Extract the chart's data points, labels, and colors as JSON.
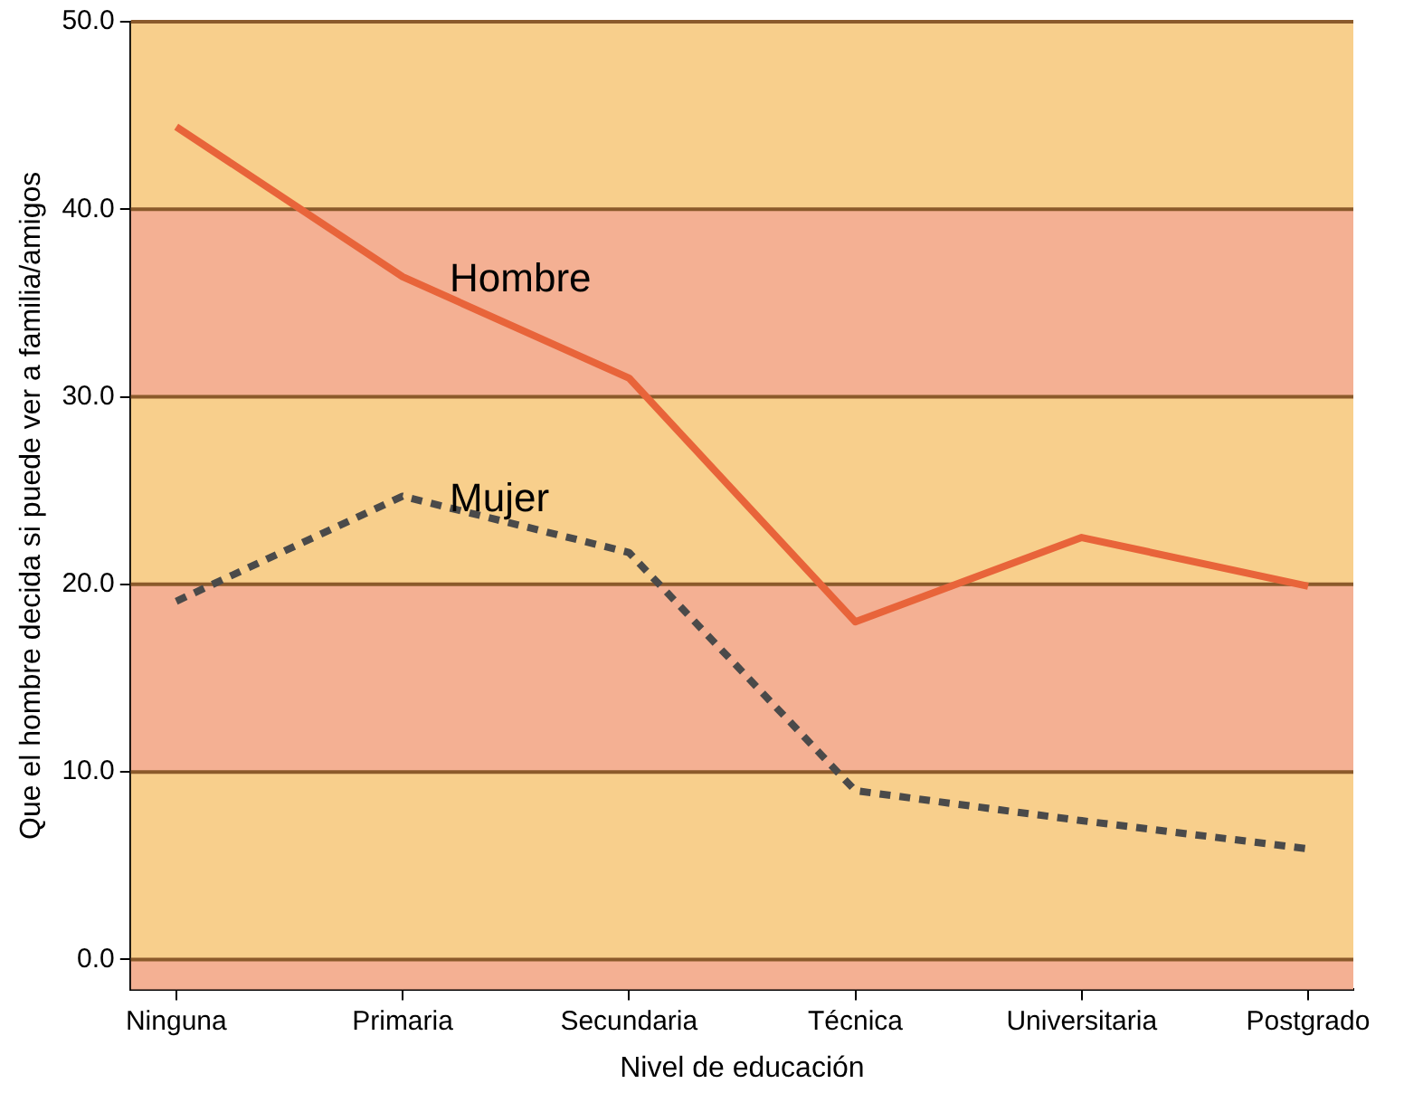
{
  "chart_data": {
    "type": "line",
    "categories": [
      "Ninguna",
      "Primaria",
      "Secundaria",
      "Técnica",
      "Universitaria",
      "Postgrado"
    ],
    "series": [
      {
        "name": "Hombre",
        "color": "#e8643a",
        "line_style": "solid",
        "values": [
          44.4,
          36.4,
          31.0,
          18.0,
          22.5,
          19.9
        ]
      },
      {
        "name": "Mujer",
        "color": "#4a4a4a",
        "line_style": "dotted",
        "values": [
          19.1,
          24.7,
          21.7,
          9.0,
          7.4,
          5.9
        ]
      }
    ],
    "xlabel": "Nivel de educación",
    "ylabel": "Que el hombre decida si puede ver a familia/amigos",
    "ylim": [
      -1.6,
      50
    ],
    "yticks": [
      {
        "value": 0,
        "label": "0.0"
      },
      {
        "value": 10,
        "label": "10.0"
      },
      {
        "value": 20,
        "label": "20.0"
      },
      {
        "value": 30,
        "label": "30.0"
      },
      {
        "value": 40,
        "label": "40.0"
      },
      {
        "value": 50,
        "label": "50.0"
      }
    ],
    "bands": [
      {
        "axis": "y",
        "from": -1.6,
        "to": 0,
        "color": "#f4b093"
      },
      {
        "axis": "y",
        "from": 0,
        "to": 10,
        "color": "#f8cf8c"
      },
      {
        "axis": "y",
        "from": 10,
        "to": 20,
        "color": "#f4b093"
      },
      {
        "axis": "y",
        "from": 20,
        "to": 30,
        "color": "#f8cf8c"
      },
      {
        "axis": "y",
        "from": 30,
        "to": 40,
        "color": "#f4b093"
      },
      {
        "axis": "y",
        "from": 40,
        "to": 50,
        "color": "#f8cf8c"
      }
    ],
    "grid": "y",
    "legend": false,
    "marker": "none"
  }
}
